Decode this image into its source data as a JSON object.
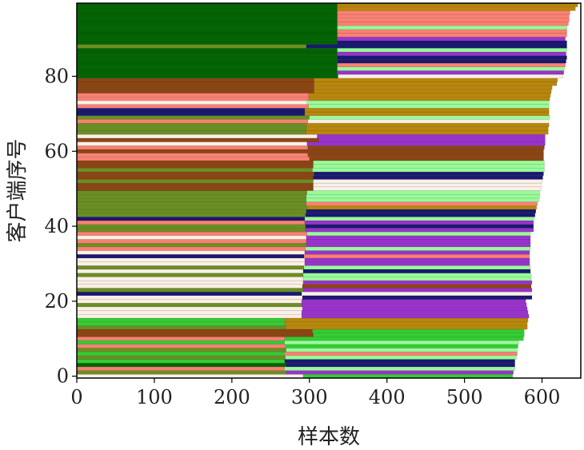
{
  "chart_data": {
    "type": "bar",
    "orientation": "horizontal-stacked",
    "xlabel": "样本数",
    "ylabel": "客户端序号",
    "xlim": [
      0,
      650
    ],
    "ylim": [
      -0.5,
      99.5
    ],
    "xticks": [
      0,
      100,
      200,
      300,
      400,
      500,
      600
    ],
    "yticks": [
      0,
      20,
      40,
      60,
      80
    ],
    "grid": false,
    "legend": "none",
    "colors": {
      "DG": "#006400",
      "GD": "#B8860B",
      "SA": "#FA8072",
      "PG": "#98FB98",
      "NV": "#191970",
      "DO": "#9932CC",
      "SB": "#8B4513",
      "OD": "#6B8E23",
      "LN": "#FAF0E6",
      "LG": "#32CD32"
    },
    "rows": [
      [
        "LN",
        292,
        "LG",
        270
      ],
      [
        "OD",
        270,
        "DO",
        293
      ],
      [
        "SA",
        268,
        "PG",
        297
      ],
      [
        "DG",
        270,
        "NV",
        295
      ],
      [
        "LG",
        268,
        "NV",
        297
      ],
      [
        "OD",
        269,
        "PG",
        298
      ],
      [
        "LG",
        268,
        "SA",
        300
      ],
      [
        "OD",
        270,
        "PG",
        298
      ],
      [
        "SA",
        269,
        "LG",
        300
      ],
      [
        "LG",
        268,
        "PG",
        302
      ],
      [
        "SA",
        268,
        "LG",
        308
      ],
      [
        "SB",
        305,
        "LG",
        272
      ],
      [
        "SB",
        304,
        "LG",
        273
      ],
      [
        "OD",
        270,
        "GD",
        311
      ],
      [
        "LG",
        268,
        "GD",
        313
      ],
      [
        "LG",
        268,
        "GD",
        314
      ],
      [
        "LN",
        290,
        "DO",
        293
      ],
      [
        "LN",
        290,
        "DO",
        292
      ],
      [
        "LN",
        291,
        "DO",
        290
      ],
      [
        "OD",
        290,
        "DO",
        290
      ],
      [
        "LN",
        290,
        "DO",
        289
      ],
      [
        "LN",
        291,
        "NV",
        296
      ],
      [
        "NV",
        290,
        "LN",
        296
      ],
      [
        "OD",
        292,
        "DO",
        295
      ],
      [
        "LN",
        291,
        "SB",
        295
      ],
      [
        "LN",
        292,
        "DO",
        295
      ],
      [
        "LN",
        292,
        "PG",
        294
      ],
      [
        "OD",
        292,
        "PG",
        294
      ],
      [
        "LN",
        292,
        "NV",
        293
      ],
      [
        "OD",
        293,
        "PG",
        292
      ],
      [
        "LN",
        294,
        "DO",
        290
      ],
      [
        "LN",
        294,
        "DO",
        290
      ],
      [
        "NV",
        293,
        "SA",
        291
      ],
      [
        "LN",
        294,
        "DO",
        290
      ],
      [
        "SA",
        295,
        "PG",
        290
      ],
      [
        "OD",
        296,
        "DO",
        289
      ],
      [
        "SA",
        296,
        "DO",
        289
      ],
      [
        "LN",
        296,
        "DO",
        289
      ],
      [
        "SA",
        297,
        "PG",
        288
      ],
      [
        "OD",
        295,
        "DO",
        294
      ],
      [
        "OD",
        295,
        "NV",
        294
      ],
      [
        "SA",
        294,
        "DO",
        295
      ],
      [
        "NV",
        294,
        "PG",
        296
      ],
      [
        "OD",
        295,
        "NV",
        296
      ],
      [
        "OD",
        296,
        "NV",
        296
      ],
      [
        "OD",
        297,
        "GD",
        296
      ],
      [
        "OD",
        296,
        "SA",
        298
      ],
      [
        "OD",
        296,
        "PG",
        300
      ],
      [
        "OD",
        296,
        "PG",
        301
      ],
      [
        "OD",
        297,
        "PG",
        300
      ],
      [
        "SB",
        305,
        "LN",
        294
      ],
      [
        "SB",
        305,
        "LN",
        294
      ],
      [
        "OD",
        305,
        "LN",
        295
      ],
      [
        "SB",
        305,
        "NV",
        296
      ],
      [
        "SB",
        306,
        "NV",
        296
      ],
      [
        "OD",
        304,
        "PG",
        299
      ],
      [
        "SB",
        305,
        "PG",
        298
      ],
      [
        "SB",
        305,
        "PG",
        298
      ],
      [
        "SA",
        300,
        "SB",
        302
      ],
      [
        "SA",
        298,
        "SB",
        304
      ],
      [
        "SB",
        300,
        "SB",
        302
      ],
      [
        "SA",
        298,
        "SB",
        305
      ],
      [
        "LN",
        297,
        "DO",
        307
      ],
      [
        "SB",
        312,
        "DO",
        292
      ],
      [
        "LN",
        310,
        "DO",
        294
      ],
      [
        "OD",
        296,
        "GD",
        312
      ],
      [
        "OD",
        296,
        "GD",
        312
      ],
      [
        "OD",
        296,
        "GD",
        313
      ],
      [
        "SA",
        298,
        "LN",
        310
      ],
      [
        "OD",
        300,
        "PG",
        310
      ],
      [
        "NV",
        294,
        "GD",
        315
      ],
      [
        "NV",
        294,
        "GD",
        315
      ],
      [
        "SA",
        299,
        "PG",
        310
      ],
      [
        "LN",
        297,
        "PG",
        312
      ],
      [
        "SA",
        299,
        "GD",
        311
      ],
      [
        "SA",
        299,
        "GD",
        312
      ],
      [
        "SB",
        306,
        "GD",
        306
      ],
      [
        "SB",
        306,
        "GD",
        307
      ],
      [
        "SB",
        306,
        "GD",
        313
      ],
      [
        "SB",
        306,
        "GD",
        314
      ],
      [
        "DG",
        337,
        "LN",
        290
      ],
      [
        "DG",
        336,
        "DO",
        292
      ],
      [
        "DG",
        336,
        "PG",
        293
      ],
      [
        "DG",
        336,
        "SA",
        294
      ],
      [
        "DG",
        336,
        "NV",
        295
      ],
      [
        "DG",
        336,
        "NV",
        296
      ],
      [
        "DG",
        336,
        "DO",
        295
      ],
      [
        "DG",
        336,
        "PG",
        296
      ],
      [
        "OD",
        296,
        "NV",
        336
      ],
      [
        "DG",
        336,
        "NV",
        296
      ],
      [
        "DG",
        336,
        "DO",
        294
      ],
      [
        "DG",
        336,
        "SA",
        296
      ],
      [
        "DG",
        336,
        "SA",
        296
      ],
      [
        "DG",
        336,
        "PG",
        296
      ],
      [
        "DG",
        336,
        "SA",
        298
      ],
      [
        "DG",
        336,
        "SA",
        299
      ],
      [
        "DG",
        336,
        "SA",
        299
      ],
      [
        "DG",
        336,
        "SA",
        300
      ],
      [
        "DG",
        336,
        "GD",
        307
      ],
      [
        "DG",
        336,
        "GD",
        310
      ]
    ]
  }
}
